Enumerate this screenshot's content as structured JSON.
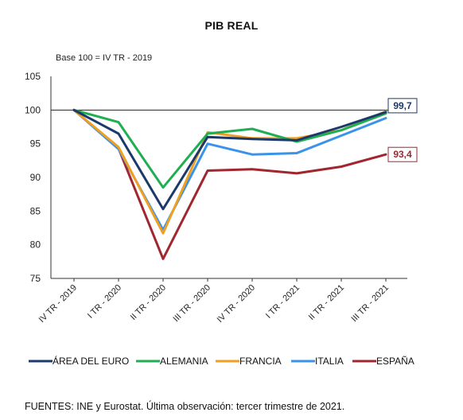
{
  "chart_data": {
    "type": "line",
    "title": "PIB REAL",
    "subtitle": "Base 100 = IV TR - 2019",
    "categories": [
      "IV TR - 2019",
      "I TR - 2020",
      "II TR - 2020",
      "III TR - 2020",
      "IV TR - 2020",
      "I TR - 2021",
      "II TR - 2021",
      "III TR - 2021"
    ],
    "ylim": [
      75,
      105
    ],
    "yticks": [
      "75",
      "80",
      "85",
      "90",
      "95",
      "100",
      "105"
    ],
    "reference_line": 100,
    "grid": false,
    "legend_position": "bottom",
    "series": [
      {
        "name": "ÁREA DEL EURO",
        "color": "#1b3a6b",
        "values": [
          100,
          96.5,
          85.3,
          96.0,
          95.7,
          95.5,
          97.5,
          99.7
        ]
      },
      {
        "name": "ALEMANIA",
        "color": "#1fae52",
        "values": [
          100,
          98.2,
          88.5,
          96.5,
          97.2,
          95.3,
          97.0,
          99.5
        ]
      },
      {
        "name": "FRANCIA",
        "color": "#f0a020",
        "values": [
          100,
          94.5,
          81.7,
          96.7,
          95.8,
          95.8,
          97.0,
          99.8
        ]
      },
      {
        "name": "ITALIA",
        "color": "#3a93e8",
        "values": [
          100,
          94.2,
          82.2,
          95.0,
          93.4,
          93.6,
          96.2,
          98.8
        ]
      },
      {
        "name": "ESPAÑA",
        "color": "#a0272f",
        "values": [
          100,
          94.3,
          77.9,
          91.0,
          91.2,
          90.6,
          91.6,
          93.4
        ]
      }
    ],
    "annotations": [
      {
        "text": "99,7",
        "value": 99.7,
        "color": "#1b3a6b"
      },
      {
        "text": "93,4",
        "value": 93.4,
        "color": "#a0272f"
      }
    ]
  },
  "source_note": "FUENTES: INE y Eurostat. Última observación: tercer trimestre de 2021."
}
